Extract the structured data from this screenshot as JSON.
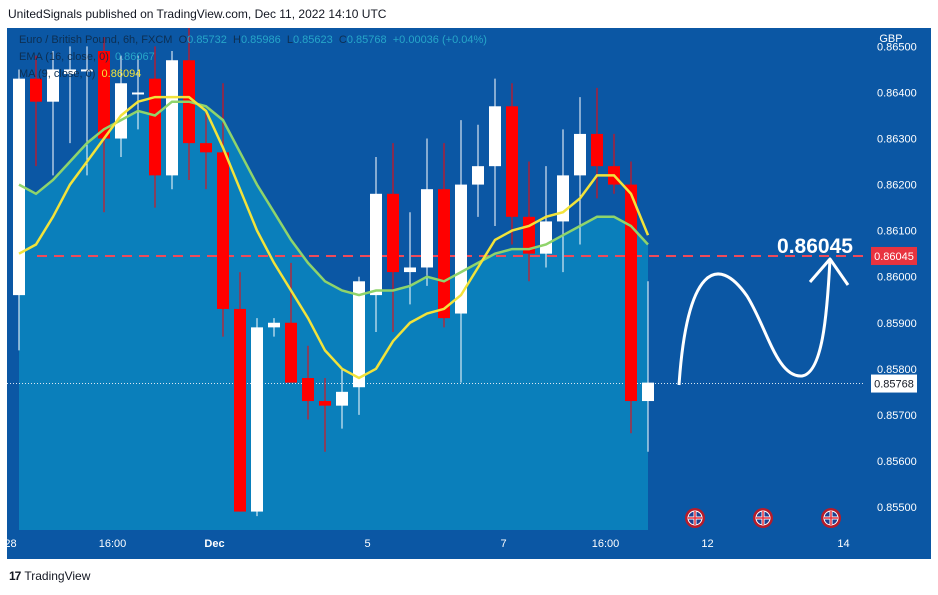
{
  "header": {
    "text": "UnitedSignals published on TradingView.com, Dec 11, 2022 14:10 UTC"
  },
  "legend": {
    "symbol": "Euro / British Pound, 6h, FXCM",
    "o_label": "O",
    "o": "0.85732",
    "h_label": "H",
    "h": "0.85986",
    "l_label": "L",
    "l": "0.85623",
    "c_label": "C",
    "c": "0.85768",
    "change": "+0.00036 (+0.04%)",
    "ema_label": "EMA (16, close, 0)",
    "ema_value": "0.86067",
    "ma_label": "MA (9, close, 0)",
    "ma_value": "0.86094"
  },
  "footer": {
    "brand": "TradingView",
    "mark": "17"
  },
  "colors": {
    "background": "#0b57a4",
    "area": "#0a86bf",
    "up": "#ffffff",
    "down": "#ff0000",
    "ema": "#8fd46b",
    "ma": "#f2e33a",
    "target": "#ef4a5a",
    "scale_text": "#ffffff"
  },
  "chart_data": {
    "type": "candlestick",
    "title": "Euro / British Pound, 6h, FXCM",
    "currency": "GBP",
    "ylim": [
      0.8545,
      0.8654
    ],
    "y_ticks": [
      "0.86500",
      "0.86400",
      "0.86300",
      "0.86200",
      "0.86100",
      "0.86000",
      "0.85900",
      "0.85800",
      "0.85700",
      "0.85600",
      "0.85500"
    ],
    "x_ticks": [
      {
        "label": "28",
        "index": -0.5
      },
      {
        "label": "16:00",
        "index": 5.5
      },
      {
        "label": "Dec",
        "index": 11.5
      },
      {
        "label": "5",
        "index": 20.5
      },
      {
        "label": "7",
        "index": 28.5
      },
      {
        "label": "16:00",
        "index": 34.5
      },
      {
        "label": "12",
        "index": 40.5
      },
      {
        "label": "14",
        "index": 48.5
      }
    ],
    "candles": [
      {
        "o": 0.8596,
        "h": 0.8645,
        "l": 0.8584,
        "c": 0.8643
      },
      {
        "o": 0.8643,
        "h": 0.8648,
        "l": 0.8624,
        "c": 0.8638
      },
      {
        "o": 0.8638,
        "h": 0.8649,
        "l": 0.8622,
        "c": 0.8645
      },
      {
        "o": 0.8644,
        "h": 0.865,
        "l": 0.8629,
        "c": 0.8645
      },
      {
        "o": 0.8645,
        "h": 0.865,
        "l": 0.8622,
        "c": 0.8645
      },
      {
        "o": 0.8649,
        "h": 0.8652,
        "l": 0.8614,
        "c": 0.863
      },
      {
        "o": 0.863,
        "h": 0.8648,
        "l": 0.8626,
        "c": 0.8642
      },
      {
        "o": 0.864,
        "h": 0.8648,
        "l": 0.8632,
        "c": 0.864
      },
      {
        "o": 0.8643,
        "h": 0.865,
        "l": 0.8615,
        "c": 0.8622
      },
      {
        "o": 0.8622,
        "h": 0.8649,
        "l": 0.8619,
        "c": 0.8647
      },
      {
        "o": 0.8647,
        "h": 0.8655,
        "l": 0.8621,
        "c": 0.8629
      },
      {
        "o": 0.8629,
        "h": 0.8636,
        "l": 0.8619,
        "c": 0.8627
      },
      {
        "o": 0.8627,
        "h": 0.8642,
        "l": 0.8587,
        "c": 0.8593
      },
      {
        "o": 0.8593,
        "h": 0.8601,
        "l": 0.8549,
        "c": 0.8549
      },
      {
        "o": 0.8549,
        "h": 0.8591,
        "l": 0.8548,
        "c": 0.8589
      },
      {
        "o": 0.8589,
        "h": 0.8591,
        "l": 0.8587,
        "c": 0.859
      },
      {
        "o": 0.859,
        "h": 0.8603,
        "l": 0.8578,
        "c": 0.8577
      },
      {
        "o": 0.8578,
        "h": 0.8585,
        "l": 0.8569,
        "c": 0.8573
      },
      {
        "o": 0.8573,
        "h": 0.8578,
        "l": 0.8562,
        "c": 0.8572
      },
      {
        "o": 0.8572,
        "h": 0.858,
        "l": 0.8567,
        "c": 0.8575
      },
      {
        "o": 0.8576,
        "h": 0.86,
        "l": 0.857,
        "c": 0.8599
      },
      {
        "o": 0.8596,
        "h": 0.8626,
        "l": 0.8588,
        "c": 0.8618
      },
      {
        "o": 0.8618,
        "h": 0.8629,
        "l": 0.8588,
        "c": 0.8601
      },
      {
        "o": 0.8601,
        "h": 0.8614,
        "l": 0.8594,
        "c": 0.8602
      },
      {
        "o": 0.8602,
        "h": 0.863,
        "l": 0.8598,
        "c": 0.8619
      },
      {
        "o": 0.8619,
        "h": 0.8629,
        "l": 0.8589,
        "c": 0.8591
      },
      {
        "o": 0.8592,
        "h": 0.8634,
        "l": 0.8577,
        "c": 0.862
      },
      {
        "o": 0.862,
        "h": 0.8633,
        "l": 0.8613,
        "c": 0.8624
      },
      {
        "o": 0.8624,
        "h": 0.8643,
        "l": 0.8611,
        "c": 0.8637
      },
      {
        "o": 0.8637,
        "h": 0.8642,
        "l": 0.8607,
        "c": 0.8613
      },
      {
        "o": 0.8613,
        "h": 0.8625,
        "l": 0.8599,
        "c": 0.8605
      },
      {
        "o": 0.8605,
        "h": 0.8624,
        "l": 0.8602,
        "c": 0.8612
      },
      {
        "o": 0.8612,
        "h": 0.8632,
        "l": 0.8601,
        "c": 0.8622
      },
      {
        "o": 0.8622,
        "h": 0.8639,
        "l": 0.8607,
        "c": 0.8631
      },
      {
        "o": 0.8631,
        "h": 0.8641,
        "l": 0.8617,
        "c": 0.8624
      },
      {
        "o": 0.8624,
        "h": 0.8631,
        "l": 0.8618,
        "c": 0.862
      },
      {
        "o": 0.862,
        "h": 0.8625,
        "l": 0.8566,
        "c": 0.8573
      },
      {
        "o": 0.8573,
        "h": 0.8599,
        "l": 0.8562,
        "c": 0.8577
      }
    ],
    "ema": [
      0.862,
      0.8618,
      0.8621,
      0.8625,
      0.8629,
      0.8632,
      0.8634,
      0.8636,
      0.8635,
      0.8638,
      0.8638,
      0.8637,
      0.8634,
      0.8627,
      0.862,
      0.8614,
      0.8608,
      0.8603,
      0.8599,
      0.8597,
      0.8596,
      0.8597,
      0.8597,
      0.8598,
      0.86,
      0.8599,
      0.8601,
      0.8603,
      0.8605,
      0.8606,
      0.8606,
      0.8607,
      0.8609,
      0.8611,
      0.8613,
      0.8613,
      0.8611,
      0.8607
    ],
    "ma": [
      0.8605,
      0.8607,
      0.8613,
      0.862,
      0.8625,
      0.863,
      0.8635,
      0.8638,
      0.8639,
      0.8639,
      0.8639,
      0.8636,
      0.8628,
      0.8619,
      0.861,
      0.8603,
      0.8597,
      0.8591,
      0.8584,
      0.858,
      0.8578,
      0.858,
      0.8586,
      0.859,
      0.8592,
      0.8593,
      0.8596,
      0.8602,
      0.8608,
      0.861,
      0.8611,
      0.8613,
      0.8614,
      0.8617,
      0.8622,
      0.8622,
      0.8618,
      0.8609
    ],
    "target_price": 0.86045,
    "target_label": "0.86045",
    "last_price": 0.85768,
    "last_label": "0.85768",
    "ma_last_label": "0.86094"
  }
}
